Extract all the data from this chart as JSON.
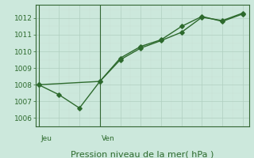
{
  "line1_x": [
    0,
    1,
    2,
    3,
    4,
    5,
    6,
    7,
    8,
    9,
    10
  ],
  "line1_y": [
    1008.0,
    1007.4,
    1006.6,
    1008.2,
    1009.6,
    1010.3,
    1010.7,
    1011.5,
    1012.1,
    1011.8,
    1012.25
  ],
  "line2_x": [
    0,
    3,
    4,
    5,
    6,
    7,
    8,
    9,
    10
  ],
  "line2_y": [
    1008.0,
    1008.2,
    1009.5,
    1010.2,
    1010.65,
    1011.15,
    1012.05,
    1011.85,
    1012.3
  ],
  "jeu_x": 0.0,
  "ven_x": 3.0,
  "color": "#2d6a2d",
  "bg_color": "#cce8dc",
  "grid_color_major": "#b0cfc0",
  "grid_color_minor": "#c8e0d4",
  "axis_color": "#336633",
  "ylim": [
    1005.5,
    1012.8
  ],
  "xlim": [
    -0.15,
    10.3
  ],
  "yticks": [
    1006,
    1007,
    1008,
    1009,
    1010,
    1011,
    1012
  ],
  "xlabel": "Pression niveau de la mer( hPa )",
  "xlabel_fontsize": 8,
  "tick_fontsize": 6.5,
  "day_label_fontsize": 6.5,
  "marker": "D",
  "marker_size": 2.8,
  "linewidth": 1.0
}
